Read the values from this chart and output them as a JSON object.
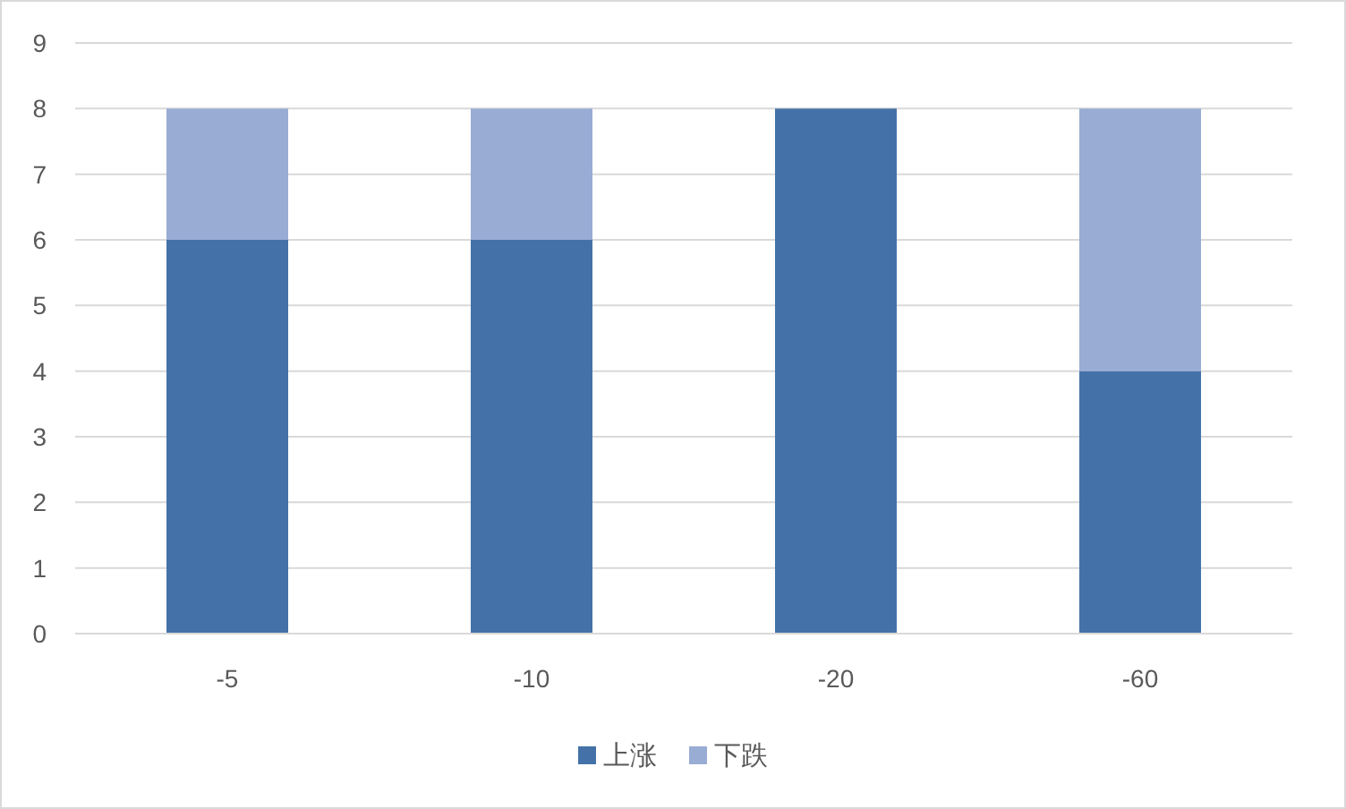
{
  "chart_data": {
    "type": "bar",
    "stacked": true,
    "categories": [
      "-5",
      "-10",
      "-20",
      "-60"
    ],
    "series": [
      {
        "name": "上涨",
        "color": "#4472a8",
        "values": [
          6,
          6,
          8,
          4
        ]
      },
      {
        "name": "下跌",
        "color": "#98acd4",
        "values": [
          2,
          2,
          0,
          4
        ]
      }
    ],
    "ylim": [
      0,
      9
    ],
    "yticks": [
      0,
      1,
      2,
      3,
      4,
      5,
      6,
      7,
      8,
      9
    ],
    "grid": "y",
    "legend": "bottom"
  }
}
